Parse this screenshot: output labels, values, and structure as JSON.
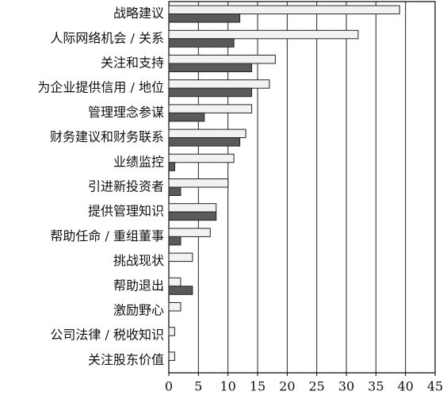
{
  "chart_data": {
    "type": "hbar",
    "categories": [
      "战略建议",
      "人际网络机会 / 关系",
      "关注和支持",
      "为企业提供信用 / 地位",
      "管理理念参谋",
      "财务建议和财务联系",
      "业绩监控",
      "引进新投资者",
      "提供管理知识",
      "帮助任命 / 重组董事",
      "挑战现状",
      "帮助退出",
      "激励野心",
      "公司法律 / 税收知识",
      "关注股东价值"
    ],
    "series": [
      {
        "color": "#f2f2f2",
        "values": [
          39,
          32,
          18,
          17,
          14,
          13,
          11,
          10,
          8,
          7,
          4,
          2,
          2,
          1,
          1
        ]
      },
      {
        "color": "#5a5a5a",
        "values": [
          12,
          11,
          14,
          14,
          6,
          12,
          1,
          2,
          8,
          2,
          0,
          4,
          0,
          0,
          0
        ]
      }
    ],
    "xlim": [
      0,
      45
    ],
    "xticks": [
      0,
      5,
      10,
      15,
      20,
      25,
      30,
      35,
      40,
      45
    ],
    "grid": true
  }
}
